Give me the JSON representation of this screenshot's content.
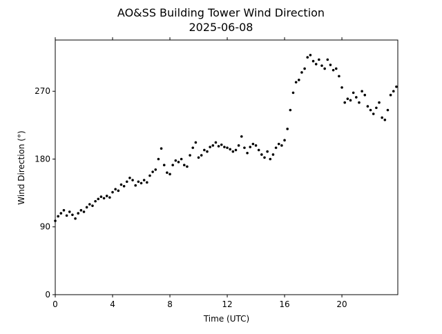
{
  "chart_data": {
    "type": "scatter",
    "title": "AO&SS Building Tower Wind Direction",
    "subtitle": "2025-06-08",
    "x_label": "Time (UTC)",
    "y_label": "Wind Direction (°)",
    "color": "#000000",
    "xlim": [
      0,
      23.9
    ],
    "xticks": [
      0,
      4,
      8,
      12,
      16,
      20
    ],
    "ylim": [
      0,
      338
    ],
    "yticks": [
      0,
      90,
      180,
      270
    ],
    "x": [
      0,
      0.2,
      0.4,
      0.6,
      0.8,
      1.0,
      1.2,
      1.4,
      1.6,
      1.8,
      2.0,
      2.2,
      2.4,
      2.6,
      2.8,
      3.0,
      3.2,
      3.4,
      3.6,
      3.8,
      4.0,
      4.2,
      4.4,
      4.6,
      4.8,
      5.0,
      5.2,
      5.4,
      5.6,
      5.8,
      6.0,
      6.2,
      6.4,
      6.6,
      6.8,
      7.0,
      7.2,
      7.4,
      7.6,
      7.8,
      8.0,
      8.2,
      8.4,
      8.6,
      8.8,
      9.0,
      9.2,
      9.4,
      9.6,
      9.8,
      10.0,
      10.2,
      10.4,
      10.6,
      10.8,
      11.0,
      11.2,
      11.4,
      11.6,
      11.8,
      12.0,
      12.2,
      12.4,
      12.6,
      12.8,
      13.0,
      13.2,
      13.4,
      13.6,
      13.8,
      14.0,
      14.2,
      14.4,
      14.6,
      14.8,
      15.0,
      15.2,
      15.4,
      15.6,
      15.8,
      16.0,
      16.2,
      16.4,
      16.6,
      16.8,
      17.0,
      17.2,
      17.4,
      17.6,
      17.8,
      18.0,
      18.2,
      18.4,
      18.6,
      18.8,
      19.0,
      19.2,
      19.4,
      19.6,
      19.8,
      20.0,
      20.2,
      20.4,
      20.6,
      20.8,
      21.0,
      21.2,
      21.4,
      21.6,
      21.8,
      22.0,
      22.2,
      22.4,
      22.6,
      22.8,
      23.0,
      23.2,
      23.4,
      23.6,
      23.8
    ],
    "values": [
      98,
      104,
      108,
      112,
      105,
      110,
      106,
      101,
      108,
      112,
      110,
      116,
      120,
      118,
      124,
      127,
      130,
      128,
      131,
      129,
      136,
      140,
      138,
      146,
      144,
      150,
      155,
      152,
      145,
      150,
      148,
      152,
      149,
      158,
      163,
      166,
      180,
      194,
      172,
      162,
      160,
      172,
      178,
      176,
      180,
      172,
      170,
      185,
      195,
      202,
      182,
      185,
      192,
      190,
      196,
      198,
      202,
      197,
      199,
      196,
      195,
      193,
      190,
      192,
      198,
      210,
      195,
      188,
      196,
      200,
      198,
      192,
      186,
      182,
      190,
      180,
      186,
      195,
      200,
      198,
      205,
      220,
      245,
      268,
      282,
      285,
      295,
      300,
      315,
      318,
      310,
      306,
      312,
      304,
      300,
      312,
      305,
      298,
      300,
      290,
      275,
      255,
      260,
      258,
      268,
      262,
      255,
      270,
      265,
      250,
      245,
      240,
      248,
      255,
      235,
      232,
      245,
      265,
      270,
      276
    ]
  }
}
